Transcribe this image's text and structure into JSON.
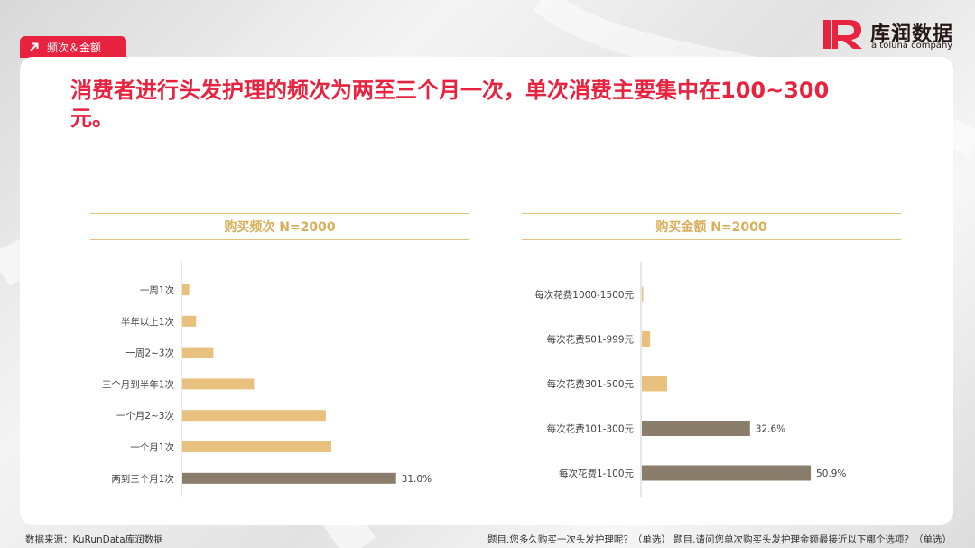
{
  "header": {
    "tag_label": "频次＆金额",
    "logo_cn": "库润数据",
    "logo_en": "a toluna company"
  },
  "headline": "消费者进行头发护理的频次为两至三个月一次，单次消费主要集中在100~300元。",
  "colors": {
    "accent": "#e8233f",
    "bar_light": "#e8c17f",
    "bar_dark": "#8b7d6b",
    "title_gold": "#d8ae5a"
  },
  "chart_data": [
    {
      "type": "bar",
      "orientation": "horizontal",
      "title": "购买频次 N=2000",
      "categories": [
        "一周1次",
        "半年以上1次",
        "一周2~3次",
        "三个月到半年1次",
        "一个月2~3次",
        "一个月1次",
        "两到三个月1次"
      ],
      "values": [
        1.0,
        2.0,
        4.5,
        10.4,
        20.8,
        21.6,
        31.0
      ],
      "data_labels": [
        "",
        "",
        "",
        "",
        "",
        "",
        "31.0%"
      ],
      "highlight": [
        false,
        false,
        false,
        false,
        false,
        false,
        true
      ],
      "xlim": [
        0,
        55
      ]
    },
    {
      "type": "bar",
      "orientation": "horizontal",
      "title": "购买金额 N=2000",
      "categories": [
        "每次花费1000-1500元",
        "每次花费501-999元",
        "每次花费301-500元",
        "每次花费101-300元",
        "每次花费1-100元"
      ],
      "values": [
        0.3,
        2.5,
        7.6,
        32.6,
        50.9
      ],
      "data_labels": [
        "",
        "",
        "",
        "32.6%",
        "50.9%"
      ],
      "highlight": [
        false,
        false,
        false,
        true,
        true
      ],
      "xlim": [
        0,
        80
      ]
    }
  ],
  "footer": {
    "source": "数据来源：KuRunData库润数据",
    "note": "题目.您多久购买一次头发护理呢？（单选）   题目.请问您单次购买头发护理金额最接近以下哪个选项？（单选）"
  }
}
